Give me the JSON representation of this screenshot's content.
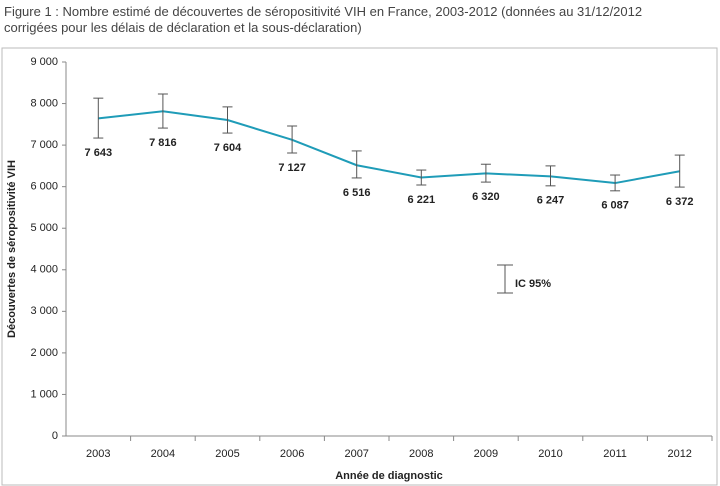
{
  "chart_data": {
    "type": "line",
    "title": [
      "Figure 1 : Nombre estimé de découvertes de séropositivité VIH en France, 2003-2012 (données au 31/12/2012",
      "corrigées pour les délais de déclaration et la sous-déclaration)"
    ],
    "x_label": "Année de diagnostic",
    "y_label": "Découvertes de séropositivité VIH",
    "categories": [
      "2003",
      "2004",
      "2005",
      "2006",
      "2007",
      "2008",
      "2009",
      "2010",
      "2011",
      "2012"
    ],
    "values": [
      7643,
      7816,
      7604,
      7127,
      6516,
      6221,
      6320,
      6247,
      6087,
      6372
    ],
    "value_labels": [
      "7 643",
      "7 816",
      "7 604",
      "7 127",
      "6 516",
      "6 221",
      "6 320",
      "6 247",
      "6 087",
      "6 372"
    ],
    "lower": [
      7170,
      7410,
      7290,
      6810,
      6210,
      6040,
      6110,
      6020,
      5900,
      5990
    ],
    "upper": [
      8130,
      8230,
      7920,
      7460,
      6860,
      6400,
      6540,
      6500,
      6280,
      6760
    ],
    "legend_label": "IC 95%",
    "color": "#1f9cb8",
    "ylim": [
      0,
      9000
    ],
    "yticks": [
      0,
      {
        "value": 1000,
        "label": "1 000"
      },
      {
        "value": 2000,
        "label": "2 000"
      },
      {
        "value": 3000,
        "label": "3 000"
      },
      {
        "value": 4000,
        "label": "4 000"
      },
      {
        "value": 5000,
        "label": "5 000"
      },
      {
        "value": 6000,
        "label": "6 000"
      },
      {
        "value": 7000,
        "label": "7 000"
      },
      {
        "value": 8000,
        "label": "8 000"
      },
      {
        "value": 9000,
        "label": "9 000"
      }
    ]
  }
}
